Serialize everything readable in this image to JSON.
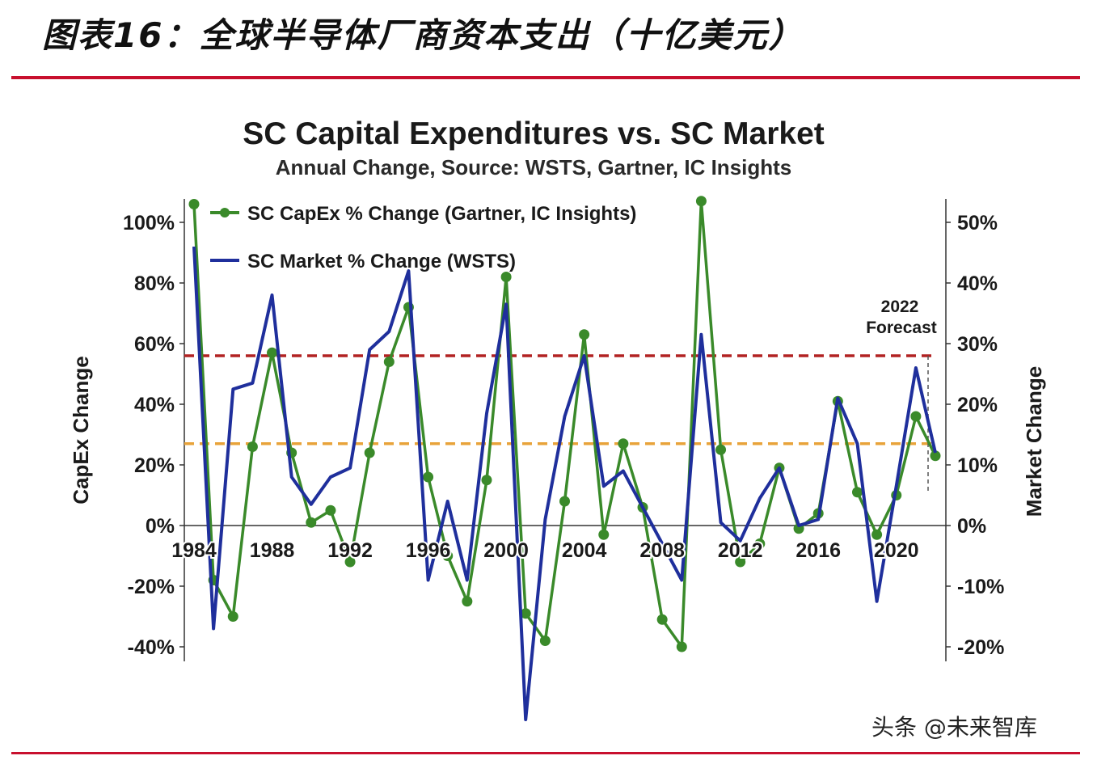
{
  "header": {
    "title": "图表16：全球半导体厂商资本支出（十亿美元）",
    "accent_color": "#c8102e"
  },
  "watermark": "头条 @未来智库",
  "chart_data": {
    "type": "line",
    "title": "SC Capital Expenditures vs. SC Market",
    "subtitle": "Annual Change, Source: WSTS, Gartner, IC Insights",
    "ylabel": "CapEx Change",
    "y2label": "Market Change",
    "ylim": [
      -0.45,
      1.08
    ],
    "y2lim": [
      -0.225,
      0.54
    ],
    "xlim": [
      1984,
      2022
    ],
    "x_ticks": [
      1984,
      1988,
      1992,
      1996,
      2000,
      2004,
      2008,
      2012,
      2016,
      2020
    ],
    "y_ticks": [
      -0.4,
      -0.2,
      0,
      0.2,
      0.4,
      0.6,
      0.8,
      1.0
    ],
    "y_tick_labels": [
      "-40%",
      "-20%",
      "0%",
      "20%",
      "40%",
      "60%",
      "80%",
      "100%"
    ],
    "y2_ticks": [
      -0.2,
      -0.1,
      0,
      0.1,
      0.2,
      0.3,
      0.4,
      0.5
    ],
    "y2_tick_labels": [
      "-20%",
      "-10%",
      "0%",
      "10%",
      "20%",
      "30%",
      "40%",
      "50%"
    ],
    "legend_position": "top-left",
    "series": [
      {
        "name": "SC CapEx % Change (Gartner, IC Insights)",
        "axis": "left",
        "color": "#3a8a2a",
        "marker": "circle",
        "x": [
          1984,
          1985,
          1986,
          1987,
          1988,
          1989,
          1990,
          1991,
          1992,
          1993,
          1994,
          1995,
          1996,
          1997,
          1998,
          1999,
          2000,
          2001,
          2002,
          2003,
          2004,
          2005,
          2006,
          2007,
          2008,
          2009,
          2010,
          2011,
          2012,
          2013,
          2014,
          2015,
          2016,
          2017,
          2018,
          2019,
          2020,
          2021,
          2022
        ],
        "values": [
          1.06,
          -0.18,
          -0.3,
          0.26,
          0.57,
          0.24,
          0.01,
          0.05,
          -0.12,
          0.24,
          0.54,
          0.72,
          0.16,
          -0.1,
          -0.25,
          0.15,
          0.82,
          -0.29,
          -0.38,
          0.08,
          0.63,
          -0.03,
          0.27,
          0.06,
          -0.31,
          -0.4,
          1.07,
          0.25,
          -0.12,
          -0.06,
          0.19,
          -0.01,
          0.04,
          0.41,
          0.11,
          -0.03,
          0.1,
          0.36,
          0.23
        ]
      },
      {
        "name": "SC Market % Change (WSTS)",
        "axis": "right",
        "color": "#1f2f9c",
        "marker": "none",
        "x": [
          1984,
          1985,
          1986,
          1987,
          1988,
          1989,
          1990,
          1991,
          1992,
          1993,
          1994,
          1995,
          1996,
          1997,
          1998,
          1999,
          2000,
          2001,
          2002,
          2003,
          2004,
          2005,
          2006,
          2007,
          2008,
          2009,
          2010,
          2011,
          2012,
          2013,
          2014,
          2015,
          2016,
          2017,
          2018,
          2019,
          2020,
          2021,
          2022
        ],
        "values": [
          0.46,
          -0.17,
          0.225,
          0.235,
          0.38,
          0.08,
          0.035,
          0.08,
          0.095,
          0.29,
          0.32,
          0.42,
          -0.09,
          0.04,
          -0.09,
          0.185,
          0.365,
          -0.32,
          0.01,
          0.18,
          0.28,
          0.065,
          0.09,
          0.03,
          -0.03,
          -0.09,
          0.315,
          0.005,
          -0.025,
          0.045,
          0.095,
          0.0,
          0.01,
          0.21,
          0.135,
          -0.125,
          0.065,
          0.26,
          0.12
        ]
      }
    ],
    "reference_lines": [
      {
        "axis": "left",
        "value": 0.56,
        "color": "#b22222",
        "style": "dashed"
      },
      {
        "axis": "left",
        "value": 0.27,
        "color": "#e8a33a",
        "style": "dashed"
      }
    ],
    "annotation": {
      "text": "2022 Forecast",
      "x": 2022
    }
  }
}
